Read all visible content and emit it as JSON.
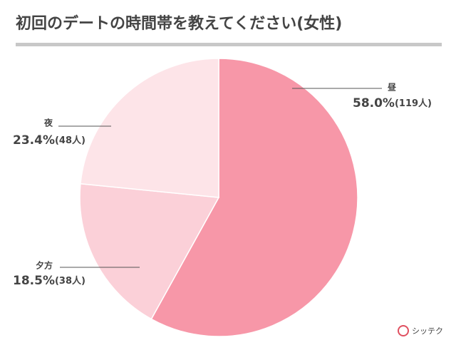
{
  "chart_data": {
    "type": "pie",
    "title": "初回のデートの時間帯を教えてください(女性)",
    "categories": [
      "昼",
      "夕方",
      "夜"
    ],
    "values": [
      58.0,
      18.5,
      23.4
    ],
    "value_labels": [
      "58.0%",
      "18.5%",
      "23.4%"
    ],
    "count_labels": [
      "(119人)",
      "(38人)",
      "(48人)"
    ],
    "colors": [
      "#f797a8",
      "#fbd0d8",
      "#fde4e8"
    ]
  },
  "logo": "シッテク"
}
